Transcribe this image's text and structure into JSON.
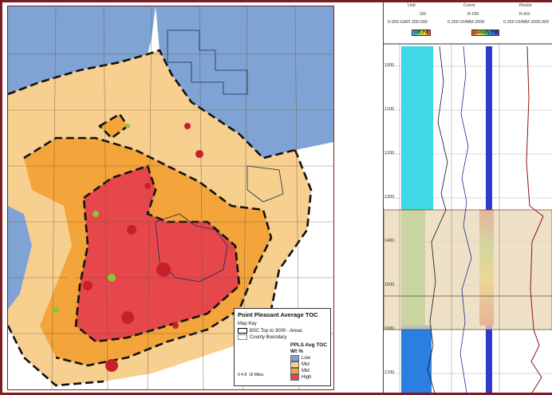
{
  "map": {
    "legend": {
      "title": "Point Pleasant Average TOC",
      "key_header": "Map Key",
      "key_items": [
        "BSC Top to 3000 - Areas",
        "County Boundary"
      ],
      "category_title": "PPLS Avg TOC",
      "unit": "Wt %",
      "classes": [
        {
          "label": "Low",
          "color": "#7fa3d4"
        },
        {
          "label": "Mid",
          "color": "#f7cf8f"
        },
        {
          "label": "Mid",
          "color": "#f3a43a"
        },
        {
          "label": "High",
          "color": "#e5474a"
        }
      ],
      "scale_labels": [
        "0",
        "4",
        "8",
        "16",
        "Miles"
      ]
    }
  },
  "log": {
    "header": {
      "col1": "GR",
      "col2": "R-OR",
      "col3": "R-AS",
      "range1": "0.000 GAPI 200.000",
      "range2": "0.200 OHMM 2000",
      "range3": "0.200 OHMM 2000.000",
      "tab1": "Unit",
      "tab2": "Curve",
      "tab3": "Resist"
    },
    "colorbars": [
      "GR Fill",
      "Density Fill"
    ],
    "depths": [
      "1000",
      "1100",
      "1200",
      "1300",
      "1400",
      "1500",
      "1600",
      "1700"
    ]
  }
}
